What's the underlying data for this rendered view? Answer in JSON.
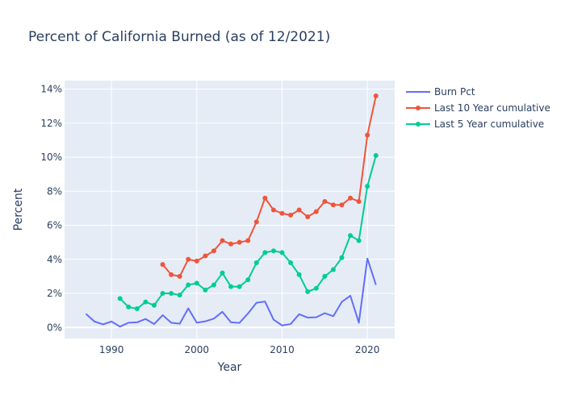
{
  "chart_data": {
    "type": "line",
    "title": "Percent of California Burned (as of 12/2021)",
    "xlabel": "Year",
    "ylabel": "Percent",
    "xlim": [
      1984.5,
      2023.2
    ],
    "ylim": [
      -0.65,
      14.5
    ],
    "x_ticks": [
      1990,
      2000,
      2010,
      2020
    ],
    "y_ticks": [
      0,
      2,
      4,
      6,
      8,
      10,
      12,
      14
    ],
    "y_tick_suffix": "%",
    "grid": true,
    "legend_position": "top-right",
    "plot_background": "#e5ecf6",
    "series": [
      {
        "name": "Burn Pct",
        "mode": "lines",
        "color": "#636efa",
        "x": [
          1987,
          1988,
          1989,
          1990,
          1991,
          1992,
          1993,
          1994,
          1995,
          1996,
          1997,
          1998,
          1999,
          2000,
          2001,
          2002,
          2003,
          2004,
          2005,
          2006,
          2007,
          2008,
          2009,
          2010,
          2011,
          2012,
          2013,
          2014,
          2015,
          2016,
          2017,
          2018,
          2019,
          2020,
          2021
        ],
        "y": [
          0.8,
          0.35,
          0.18,
          0.35,
          0.05,
          0.28,
          0.3,
          0.5,
          0.2,
          0.72,
          0.28,
          0.22,
          1.12,
          0.28,
          0.36,
          0.52,
          0.92,
          0.3,
          0.27,
          0.82,
          1.45,
          1.52,
          0.46,
          0.12,
          0.2,
          0.78,
          0.58,
          0.6,
          0.84,
          0.66,
          1.5,
          1.86,
          0.28,
          4.05,
          2.5
        ]
      },
      {
        "name": "Last 10 Year cumulative",
        "mode": "lines+markers",
        "color": "#ef553b",
        "x": [
          1996,
          1997,
          1998,
          1999,
          2000,
          2001,
          2002,
          2003,
          2004,
          2005,
          2006,
          2007,
          2008,
          2009,
          2010,
          2011,
          2012,
          2013,
          2014,
          2015,
          2016,
          2017,
          2018,
          2019,
          2020,
          2021
        ],
        "y": [
          3.7,
          3.1,
          3.0,
          4.0,
          3.9,
          4.2,
          4.5,
          5.1,
          4.9,
          5.0,
          5.1,
          6.2,
          7.6,
          6.9,
          6.7,
          6.6,
          6.9,
          6.5,
          6.8,
          7.4,
          7.2,
          7.2,
          7.6,
          7.4,
          11.3,
          13.6
        ]
      },
      {
        "name": "Last 5 Year cumulative",
        "mode": "lines+markers",
        "color": "#00cc96",
        "x": [
          1991,
          1992,
          1993,
          1994,
          1995,
          1996,
          1997,
          1998,
          1999,
          2000,
          2001,
          2002,
          2003,
          2004,
          2005,
          2006,
          2007,
          2008,
          2009,
          2010,
          2011,
          2012,
          2013,
          2014,
          2015,
          2016,
          2017,
          2018,
          2019,
          2020,
          2021
        ],
        "y": [
          1.7,
          1.2,
          1.1,
          1.5,
          1.3,
          2.0,
          2.0,
          1.9,
          2.5,
          2.6,
          2.2,
          2.5,
          3.2,
          2.4,
          2.4,
          2.8,
          3.8,
          4.4,
          4.5,
          4.4,
          3.8,
          3.1,
          2.1,
          2.3,
          3.0,
          3.4,
          4.1,
          5.4,
          5.1,
          8.3,
          10.1
        ]
      }
    ]
  }
}
